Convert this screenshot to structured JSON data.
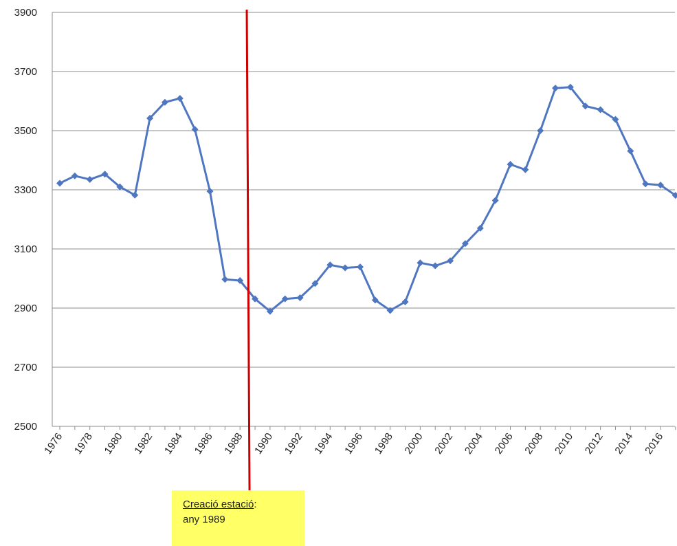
{
  "chart_data": {
    "type": "line",
    "x": [
      1976,
      1977,
      1978,
      1979,
      1980,
      1981,
      1982,
      1983,
      1984,
      1985,
      1986,
      1987,
      1988,
      1989,
      1990,
      1991,
      1992,
      1993,
      1994,
      1995,
      1996,
      1997,
      1998,
      1999,
      2000,
      2001,
      2002,
      2003,
      2004,
      2005,
      2006,
      2007,
      2008,
      2009,
      2010,
      2011,
      2012,
      2013,
      2014,
      2015,
      2016,
      2017
    ],
    "y_ticks": [
      2500,
      2700,
      2900,
      3100,
      3300,
      3500,
      3700,
      3900
    ],
    "x_tick_labels": [
      "1976",
      "1978",
      "1980",
      "1982",
      "1984",
      "1986",
      "1988",
      "1990",
      "1992",
      "1994",
      "1996",
      "1998",
      "2000",
      "2002",
      "2004",
      "2006",
      "2008",
      "2010",
      "2012",
      "2014",
      "2016"
    ],
    "ylim": [
      2500,
      3900
    ],
    "series": [
      {
        "color": "#4f76c0",
        "values": [
          3322,
          3347,
          3335,
          3353,
          3310,
          3282,
          3542,
          3596,
          3609,
          3504,
          3295,
          2997,
          2993,
          2931,
          2889,
          2931,
          2935,
          2983,
          3046,
          3036,
          3039,
          2927,
          2892,
          2921,
          3053,
          3043,
          3060,
          3118,
          3170,
          3264,
          3386,
          3368,
          3500,
          3644,
          3647,
          3583,
          3571,
          3538,
          3431,
          3320,
          3316,
          3281
        ]
      }
    ],
    "marker_line": {
      "x": 1989,
      "color": "#cc0000"
    },
    "annotation": {
      "title": "Creació estació",
      "separator": ":",
      "text": "any 1989",
      "background": "#ffff66"
    },
    "grid": true,
    "legend": "none"
  }
}
